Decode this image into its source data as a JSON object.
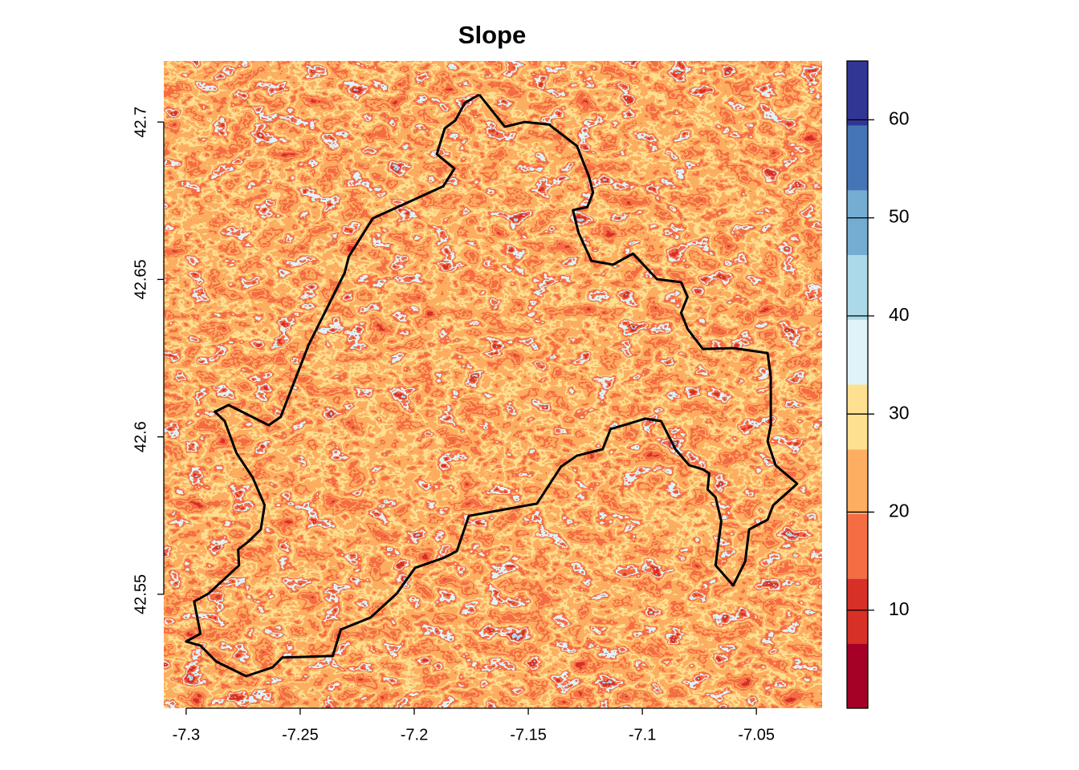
{
  "chart_data": {
    "type": "raster",
    "title": "Slope",
    "xlim": [
      -7.3098,
      -7.0212
    ],
    "ylim": [
      42.5138,
      42.7194
    ],
    "xticks": [
      -7.3,
      -7.25,
      -7.2,
      -7.15,
      -7.1,
      -7.05
    ],
    "yticks": [
      42.55,
      42.6,
      42.65,
      42.7
    ],
    "colorbar": {
      "levels": [
        0,
        6.6,
        13.2,
        19.8,
        26.4,
        33,
        39.6,
        46.2,
        52.8,
        59.4,
        66
      ],
      "colors": [
        "#a50026",
        "#d73027",
        "#f46d43",
        "#fdae61",
        "#fee090",
        "#e0f3f8",
        "#abd9e9",
        "#74add1",
        "#4575b4",
        "#313695"
      ],
      "ticks": [
        10,
        20,
        30,
        40,
        50,
        60
      ]
    },
    "boundary": {
      "color": "#000000",
      "lon": [
        -7.1715,
        -7.1603,
        -7.1515,
        -7.1409,
        -7.1287,
        -7.1234,
        -7.1216,
        -7.1241,
        -7.1304,
        -7.128,
        -7.1223,
        -7.1129,
        -7.1041,
        -7.0936,
        -7.083,
        -7.0802,
        -7.083,
        -7.0802,
        -7.0735,
        -7.0602,
        -7.0451,
        -7.0437,
        -7.0437,
        -7.0451,
        -7.0416,
        -7.0321,
        -7.0426,
        -7.0451,
        -7.0532,
        -7.0549,
        -7.0602,
        -7.0679,
        -7.0654,
        -7.0679,
        -7.0714,
        -7.0707,
        -7.0735,
        -7.0795,
        -7.0855,
        -7.0918,
        -7.0988,
        -7.1058,
        -7.1139,
        -7.1174,
        -7.1287,
        -7.1357,
        -7.1462,
        -7.1761,
        -7.1813,
        -7.1866,
        -7.1996,
        -7.2077,
        -7.2192,
        -7.2322,
        -7.2357,
        -7.2579,
        -7.2621,
        -7.2737,
        -7.2867,
        -7.2937,
        -7.3,
        -7.2937,
        -7.2965,
        -7.2902,
        -7.2768,
        -7.2772,
        -7.2726,
        -7.2673,
        -7.2656,
        -7.2709,
        -7.2779,
        -7.2831,
        -7.2874,
        -7.2814,
        -7.2638,
        -7.2586,
        -7.2463,
        -7.2305,
        -7.2287,
        -7.2182,
        -7.1873,
        -7.1824,
        -7.1901,
        -7.1866,
        -7.182,
        -7.1778,
        -7.1715
      ],
      "lat": [
        42.7087,
        42.6985,
        42.7,
        42.6992,
        42.6924,
        42.6827,
        42.6776,
        42.673,
        42.672,
        42.6649,
        42.6559,
        42.6547,
        42.6582,
        42.6501,
        42.6491,
        42.6445,
        42.6394,
        42.6343,
        42.6279,
        42.6282,
        42.6266,
        42.619,
        42.6037,
        42.5986,
        42.591,
        42.5851,
        42.5783,
        42.5737,
        42.5706,
        42.5604,
        42.5528,
        42.5592,
        42.5732,
        42.5808,
        42.5833,
        42.5884,
        42.5897,
        42.591,
        42.5961,
        42.605,
        42.6058,
        42.6042,
        42.6025,
        42.5961,
        42.594,
        42.5905,
        42.5788,
        42.5749,
        42.5637,
        42.5617,
        42.5584,
        42.5502,
        42.5426,
        42.5388,
        42.5304,
        42.5299,
        42.5268,
        42.524,
        42.5286,
        42.5337,
        42.535,
        42.5375,
        42.5477,
        42.5502,
        42.5592,
        42.5642,
        42.5668,
        42.5706,
        42.5783,
        42.5872,
        42.5948,
        42.605,
        42.608,
        42.6101,
        42.6037,
        42.6063,
        42.6292,
        42.6521,
        42.6572,
        42.6694,
        42.6796,
        42.6852,
        42.6898,
        42.698,
        42.7005,
        42.7061,
        42.7087
      ]
    }
  }
}
